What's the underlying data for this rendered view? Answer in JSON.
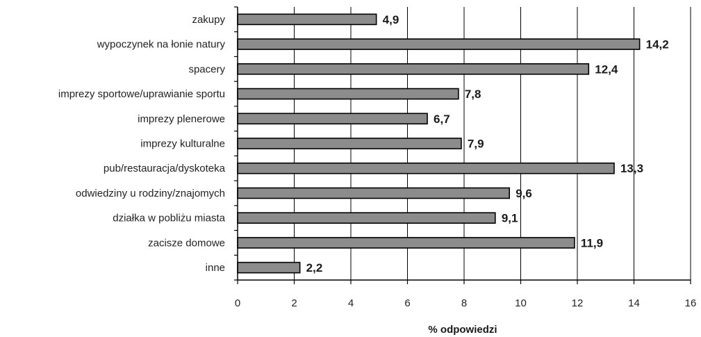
{
  "chart_data": {
    "type": "bar",
    "orientation": "horizontal",
    "categories": [
      "zakupy",
      "wypoczynek na łonie natury",
      "spacery",
      "imprezy sportowe/uprawianie sportu",
      "imprezy plenerowe",
      "imprezy kulturalne",
      "pub/restauracja/dyskoteka",
      "odwiedziny u rodziny/znajomych",
      "działka w pobliżu miasta",
      "zacisze domowe",
      "inne"
    ],
    "values": [
      4.9,
      14.2,
      12.4,
      7.8,
      6.7,
      7.9,
      13.3,
      9.6,
      9.1,
      11.9,
      2.2
    ],
    "value_labels": [
      "4,9",
      "14,2",
      "12,4",
      "7,8",
      "6,7",
      "7,9",
      "13,3",
      "9,6",
      "9,1",
      "11,9",
      "2,2"
    ],
    "xlabel": "% odpowiedzi",
    "xlim": [
      0,
      16
    ],
    "xticks": [
      0,
      2,
      4,
      6,
      8,
      10,
      12,
      14,
      16
    ],
    "xtick_labels": [
      "0",
      "2",
      "4",
      "6",
      "8",
      "10",
      "12",
      "14",
      "16"
    ],
    "grid": true,
    "bar_color": "#8c8c8c",
    "bar_edge_color": "#000000"
  }
}
